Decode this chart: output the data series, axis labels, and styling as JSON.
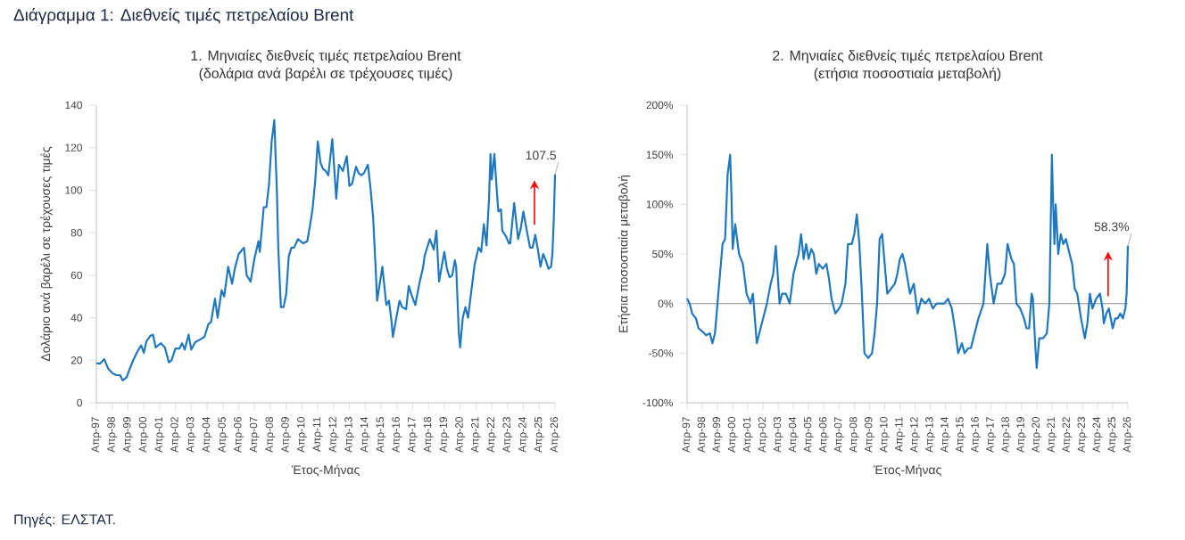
{
  "chart_data": [
    {
      "type": "line",
      "title": "1. Μηνιαίες διεθνείς τιμές πετρελαίου Brent",
      "subtitle": "(δολάρια ανά βαρέλι σε τρέχουσες τιμές)",
      "xlabel": "Έτος-Μήνας",
      "ylabel": "Δολάριο ανά βαρέλι σε τρέχουσες τιμές",
      "color": "#1f77c0",
      "x": [
        "1997-04",
        "1997-07",
        "1997-10",
        "1998-01",
        "1998-04",
        "1998-07",
        "1998-10",
        "1998-12",
        "1999-03",
        "1999-05",
        "1999-08",
        "1999-11",
        "2000-02",
        "2000-04",
        "2000-06",
        "2000-09",
        "2000-11",
        "2001-01",
        "2001-05",
        "2001-08",
        "2001-11",
        "2002-01",
        "2002-04",
        "2002-07",
        "2002-09",
        "2002-11",
        "2003-02",
        "2003-04",
        "2003-07",
        "2003-10",
        "2004-02",
        "2004-05",
        "2004-07",
        "2004-10",
        "2004-12",
        "2005-03",
        "2005-05",
        "2005-08",
        "2005-11",
        "2006-01",
        "2006-04",
        "2006-08",
        "2006-10",
        "2007-01",
        "2007-04",
        "2007-07",
        "2007-08",
        "2007-11",
        "2008-01",
        "2008-03",
        "2008-05",
        "2008-07",
        "2008-09",
        "2008-10",
        "2008-12",
        "2009-02",
        "2009-04",
        "2009-06",
        "2009-08",
        "2009-10",
        "2010-01",
        "2010-05",
        "2010-08",
        "2010-10",
        "2010-12",
        "2011-02",
        "2011-04",
        "2011-06",
        "2011-08",
        "2011-10",
        "2011-12",
        "2012-03",
        "2012-06",
        "2012-08",
        "2012-11",
        "2013-02",
        "2013-04",
        "2013-06",
        "2013-09",
        "2013-11",
        "2014-01",
        "2014-03",
        "2014-06",
        "2014-08",
        "2014-10",
        "2014-12",
        "2015-01",
        "2015-05",
        "2015-08",
        "2015-10",
        "2015-12",
        "2016-01",
        "2016-03",
        "2016-06",
        "2016-08",
        "2016-11",
        "2017-01",
        "2017-03",
        "2017-06",
        "2017-09",
        "2017-12",
        "2018-01",
        "2018-05",
        "2018-08",
        "2018-10",
        "2018-12",
        "2019-02",
        "2019-04",
        "2019-06",
        "2019-08",
        "2019-10",
        "2019-12",
        "2020-01",
        "2020-03",
        "2020-04",
        "2020-06",
        "2020-08",
        "2020-10",
        "2020-12",
        "2021-03",
        "2021-06",
        "2021-08",
        "2021-10",
        "2021-12",
        "2022-02",
        "2022-03",
        "2022-04",
        "2022-06",
        "2022-08",
        "2022-09",
        "2022-11",
        "2022-12",
        "2023-03",
        "2023-05",
        "2023-06",
        "2023-09",
        "2023-12",
        "2024-02",
        "2024-04",
        "2024-06",
        "2024-09",
        "2024-11",
        "2025-01",
        "2025-03",
        "2025-05",
        "2025-07",
        "2025-09",
        "2025-11",
        "2026-01",
        "2026-02",
        "2026-03",
        "2026-04"
      ],
      "values": [
        18.5,
        18.5,
        20.5,
        16,
        14,
        13,
        13,
        10.5,
        12,
        15.5,
        20,
        24,
        27,
        23.5,
        29,
        31.5,
        32,
        26,
        28,
        26,
        19,
        20,
        25.5,
        25.5,
        28,
        25,
        32,
        25,
        28.5,
        29.5,
        31,
        37,
        38,
        49,
        40,
        53,
        50,
        64,
        56,
        63,
        70,
        73,
        60,
        57,
        68,
        76,
        71,
        92,
        92,
        103,
        123,
        133,
        99,
        73,
        45,
        45,
        51,
        69,
        73,
        73,
        77,
        75,
        76,
        83,
        91,
        104,
        123,
        113,
        110,
        109,
        107,
        124,
        96,
        112,
        109,
        116,
        102,
        103,
        111,
        108,
        107,
        108,
        112,
        101,
        87,
        62,
        48,
        64,
        46,
        48,
        38,
        31,
        38,
        48,
        45,
        44,
        55,
        51,
        46,
        56,
        64,
        69,
        77,
        72,
        81,
        57,
        64,
        71,
        63,
        59,
        60,
        67,
        64,
        33,
        26,
        40,
        45,
        40,
        50,
        65,
        73,
        71,
        84,
        74,
        97,
        117,
        105,
        117,
        98,
        90,
        91,
        81,
        78,
        75,
        75,
        94,
        77,
        82,
        90,
        83,
        73,
        73,
        79,
        72,
        64,
        70,
        67,
        63,
        64,
        70,
        85,
        107.5
      ],
      "xlim": [
        "1997-04",
        "2026-04"
      ],
      "ylim": [
        0,
        140
      ],
      "yticks": [
        0,
        20,
        40,
        60,
        80,
        100,
        120,
        140
      ],
      "xticks": [
        {
          "value": "1997-04",
          "label": "Απρ-97"
        },
        {
          "value": "1998-04",
          "label": "Απρ-98"
        },
        {
          "value": "1999-04",
          "label": "Απρ-99"
        },
        {
          "value": "2000-04",
          "label": "Απρ-00"
        },
        {
          "value": "2001-04",
          "label": "Απρ-01"
        },
        {
          "value": "2002-04",
          "label": "Απρ-02"
        },
        {
          "value": "2003-04",
          "label": "Απρ-03"
        },
        {
          "value": "2004-04",
          "label": "Απρ-04"
        },
        {
          "value": "2005-04",
          "label": "Απρ-05"
        },
        {
          "value": "2006-04",
          "label": "Απρ-06"
        },
        {
          "value": "2007-04",
          "label": "Απρ-07"
        },
        {
          "value": "2008-04",
          "label": "Απρ-08"
        },
        {
          "value": "2009-04",
          "label": "Απρ-09"
        },
        {
          "value": "2010-04",
          "label": "Απρ-10"
        },
        {
          "value": "2011-04",
          "label": "Απρ-11"
        },
        {
          "value": "2012-04",
          "label": "Απρ-12"
        },
        {
          "value": "2013-04",
          "label": "Απρ-13"
        },
        {
          "value": "2014-04",
          "label": "Απρ-14"
        },
        {
          "value": "2015-04",
          "label": "Απρ-15"
        },
        {
          "value": "2016-04",
          "label": "Απρ-16"
        },
        {
          "value": "2017-04",
          "label": "Απρ-17"
        },
        {
          "value": "2018-04",
          "label": "Απρ-18"
        },
        {
          "value": "2019-04",
          "label": "Απρ-19"
        },
        {
          "value": "2020-04",
          "label": "Απρ-20"
        },
        {
          "value": "2021-04",
          "label": "Απρ-21"
        },
        {
          "value": "2022-04",
          "label": "Απρ-22"
        },
        {
          "value": "2023-04",
          "label": "Απρ-23"
        },
        {
          "value": "2024-04",
          "label": "Απρ-24"
        },
        {
          "value": "2025-04",
          "label": "Απρ-25"
        },
        {
          "value": "2026-04",
          "label": "Απρ-26"
        }
      ],
      "annotations": [
        "Διάγραμμα 1: Διεθνείς τιμές πετρελαίου Brent",
        {
          "text": "107.5",
          "x": "2026-04",
          "y": 107.5
        },
        "Πηγές: ΕΛΣΤΑΤ."
      ]
    },
    {
      "type": "line",
      "title": "2. Μηνιαίες διεθνείς τιμές πετρελαίου Brent",
      "subtitle": "(ετήσια ποσοστιαία μεταβολή)",
      "xlabel": "Έτος-Μήνας",
      "ylabel": "Ετήσια ποσοστιαία μεταβολή",
      "color": "#1f77c0",
      "x": [
        "1997-04",
        "1997-06",
        "1997-08",
        "1997-11",
        "1998-01",
        "1998-04",
        "1998-07",
        "1998-10",
        "1998-12",
        "1999-02",
        "1999-04",
        "1999-06",
        "1999-08",
        "1999-10",
        "1999-12",
        "2000-02",
        "2000-03",
        "2000-04",
        "2000-06",
        "2000-09",
        "2000-12",
        "2001-03",
        "2001-06",
        "2001-08",
        "2001-11",
        "2002-01",
        "2002-04",
        "2002-07",
        "2002-10",
        "2002-12",
        "2003-02",
        "2003-03",
        "2003-05",
        "2003-07",
        "2003-10",
        "2004-01",
        "2004-04",
        "2004-06",
        "2004-08",
        "2004-10",
        "2004-12",
        "2005-02",
        "2005-04",
        "2005-06",
        "2005-08",
        "2005-10",
        "2005-12",
        "2006-03",
        "2006-06",
        "2006-08",
        "2006-10",
        "2007-01",
        "2007-04",
        "2007-06",
        "2007-09",
        "2007-11",
        "2008-02",
        "2008-04",
        "2008-06",
        "2008-08",
        "2008-10",
        "2008-12",
        "2009-03",
        "2009-06",
        "2009-08",
        "2009-10",
        "2009-12",
        "2010-02",
        "2010-04",
        "2010-06",
        "2010-09",
        "2010-12",
        "2011-02",
        "2011-04",
        "2011-06",
        "2011-08",
        "2011-10",
        "2011-12",
        "2012-03",
        "2012-06",
        "2012-09",
        "2012-12",
        "2013-03",
        "2013-06",
        "2013-09",
        "2013-12",
        "2014-03",
        "2014-06",
        "2014-09",
        "2014-12",
        "2015-02",
        "2015-05",
        "2015-07",
        "2015-10",
        "2015-12",
        "2016-03",
        "2016-06",
        "2016-10",
        "2017-01",
        "2017-03",
        "2017-06",
        "2017-09",
        "2017-12",
        "2018-03",
        "2018-05",
        "2018-08",
        "2018-10",
        "2018-12",
        "2019-03",
        "2019-06",
        "2019-08",
        "2019-10",
        "2019-12",
        "2020-01",
        "2020-03",
        "2020-04",
        "2020-06",
        "2020-09",
        "2020-12",
        "2021-02",
        "2021-04",
        "2021-05",
        "2021-06",
        "2021-07",
        "2021-09",
        "2021-11",
        "2022-01",
        "2022-03",
        "2022-06",
        "2022-08",
        "2022-10",
        "2022-12",
        "2023-03",
        "2023-06",
        "2023-08",
        "2023-10",
        "2023-12",
        "2024-03",
        "2024-06",
        "2024-08",
        "2024-09",
        "2024-11",
        "2025-01",
        "2025-04",
        "2025-06",
        "2025-08",
        "2025-10",
        "2025-12",
        "2026-02",
        "2026-03",
        "2026-04"
      ],
      "values": [
        5,
        0,
        -10,
        -15,
        -25,
        -28,
        -32,
        -30,
        -40,
        -30,
        0,
        30,
        60,
        65,
        130,
        150,
        110,
        55,
        80,
        50,
        40,
        10,
        0,
        10,
        -40,
        -30,
        -15,
        0,
        20,
        30,
        58,
        40,
        0,
        10,
        10,
        0,
        30,
        40,
        50,
        70,
        45,
        60,
        45,
        55,
        50,
        30,
        40,
        35,
        40,
        25,
        5,
        -10,
        -5,
        0,
        20,
        60,
        60,
        70,
        90,
        60,
        10,
        -50,
        -55,
        -50,
        -30,
        0,
        65,
        70,
        40,
        10,
        15,
        20,
        30,
        45,
        50,
        40,
        25,
        10,
        20,
        -10,
        5,
        0,
        5,
        -5,
        0,
        0,
        0,
        5,
        -5,
        -30,
        -50,
        -40,
        -50,
        -45,
        -45,
        -30,
        -15,
        0,
        60,
        30,
        0,
        20,
        20,
        30,
        60,
        45,
        40,
        0,
        -5,
        -15,
        -25,
        -25,
        10,
        5,
        -45,
        -65,
        -35,
        -35,
        -30,
        0,
        150,
        100,
        60,
        100,
        50,
        70,
        60,
        65,
        50,
        40,
        15,
        10,
        -15,
        -35,
        -20,
        10,
        -5,
        5,
        10,
        -5,
        -20,
        -10,
        -5,
        -25,
        -15,
        -15,
        -10,
        -15,
        -5,
        10,
        58.3
      ],
      "xlim": [
        "1997-04",
        "2026-04"
      ],
      "ylim": [
        -100,
        200
      ],
      "yticks": [
        {
          "value": -100,
          "label": "-100%"
        },
        {
          "value": -50,
          "label": "-50%"
        },
        {
          "value": 0,
          "label": "0%"
        },
        {
          "value": 50,
          "label": "50%"
        },
        {
          "value": 100,
          "label": "100%"
        },
        {
          "value": 150,
          "label": "150%"
        },
        {
          "value": 200,
          "label": "200%"
        }
      ],
      "xticks": [
        {
          "value": "1997-04",
          "label": "Απρ-97"
        },
        {
          "value": "1998-04",
          "label": "Απρ-98"
        },
        {
          "value": "1999-04",
          "label": "Απρ-99"
        },
        {
          "value": "2000-04",
          "label": "Απρ-00"
        },
        {
          "value": "2001-04",
          "label": "Απρ-01"
        },
        {
          "value": "2002-04",
          "label": "Απρ-02"
        },
        {
          "value": "2003-04",
          "label": "Απρ-03"
        },
        {
          "value": "2004-04",
          "label": "Απρ-04"
        },
        {
          "value": "2005-04",
          "label": "Απρ-05"
        },
        {
          "value": "2006-04",
          "label": "Απρ-06"
        },
        {
          "value": "2007-04",
          "label": "Απρ-07"
        },
        {
          "value": "2008-04",
          "label": "Απρ-08"
        },
        {
          "value": "2009-04",
          "label": "Απρ-09"
        },
        {
          "value": "2010-04",
          "label": "Απρ-10"
        },
        {
          "value": "2011-04",
          "label": "Απρ-11"
        },
        {
          "value": "2012-04",
          "label": "Απρ-12"
        },
        {
          "value": "2013-04",
          "label": "Απρ-13"
        },
        {
          "value": "2014-04",
          "label": "Απρ-14"
        },
        {
          "value": "2015-04",
          "label": "Απρ-15"
        },
        {
          "value": "2016-04",
          "label": "Απρ-16"
        },
        {
          "value": "2017-04",
          "label": "Απρ-17"
        },
        {
          "value": "2018-04",
          "label": "Απρ-18"
        },
        {
          "value": "2019-04",
          "label": "Απρ-19"
        },
        {
          "value": "2020-04",
          "label": "Απρ-20"
        },
        {
          "value": "2021-04",
          "label": "Απρ-21"
        },
        {
          "value": "2022-04",
          "label": "Απρ-22"
        },
        {
          "value": "2023-04",
          "label": "Απρ-23"
        },
        {
          "value": "2024-04",
          "label": "Απρ-24"
        },
        {
          "value": "2025-04",
          "label": "Απρ-25"
        },
        {
          "value": "2026-04",
          "label": "Απρ-26"
        }
      ],
      "ref_lines": [
        {
          "axis": "y",
          "value": 0,
          "color": "#a6a6a6"
        }
      ],
      "annotations": [
        {
          "text": "58.3%",
          "x": "2026-04",
          "y": 58.3
        }
      ]
    }
  ]
}
